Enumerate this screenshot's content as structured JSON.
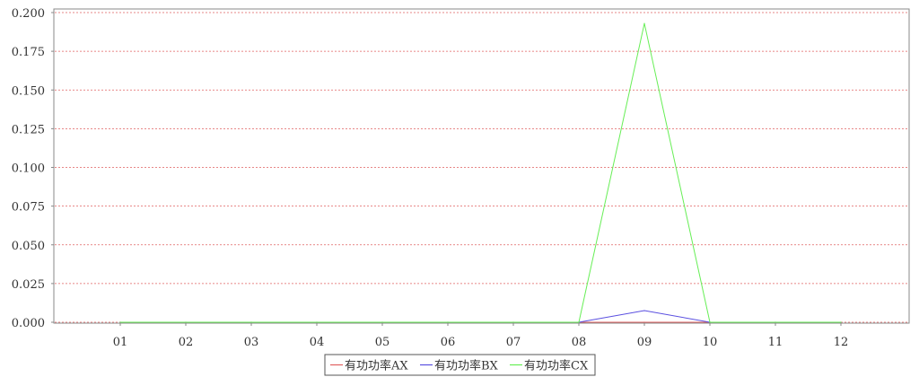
{
  "chart_data": {
    "type": "line",
    "categories": [
      "01",
      "02",
      "03",
      "04",
      "05",
      "06",
      "07",
      "08",
      "09",
      "10",
      "11",
      "12"
    ],
    "series": [
      {
        "name": "有功功率AX",
        "color": "#e06060",
        "values": [
          0,
          0,
          0,
          0,
          0,
          0,
          0,
          0,
          0,
          0,
          0,
          0
        ]
      },
      {
        "name": "有功功率BX",
        "color": "#5a4fe0",
        "values": [
          0,
          0,
          0,
          0,
          0,
          0,
          0,
          0,
          0.0075,
          0,
          0,
          0
        ]
      },
      {
        "name": "有功功率CX",
        "color": "#66ee55",
        "values": [
          0,
          0,
          0,
          0,
          0,
          0,
          0,
          0,
          0.193,
          0,
          0,
          0
        ]
      }
    ],
    "y_ticks": [
      "0.000",
      "0.025",
      "0.050",
      "0.075",
      "0.100",
      "0.125",
      "0.150",
      "0.175",
      "0.200"
    ],
    "ylim": [
      0,
      0.2
    ],
    "title": "",
    "xlabel": "",
    "ylabel": "",
    "grid": true,
    "grid_color": "#e06060",
    "legend_position": "bottom-center"
  }
}
